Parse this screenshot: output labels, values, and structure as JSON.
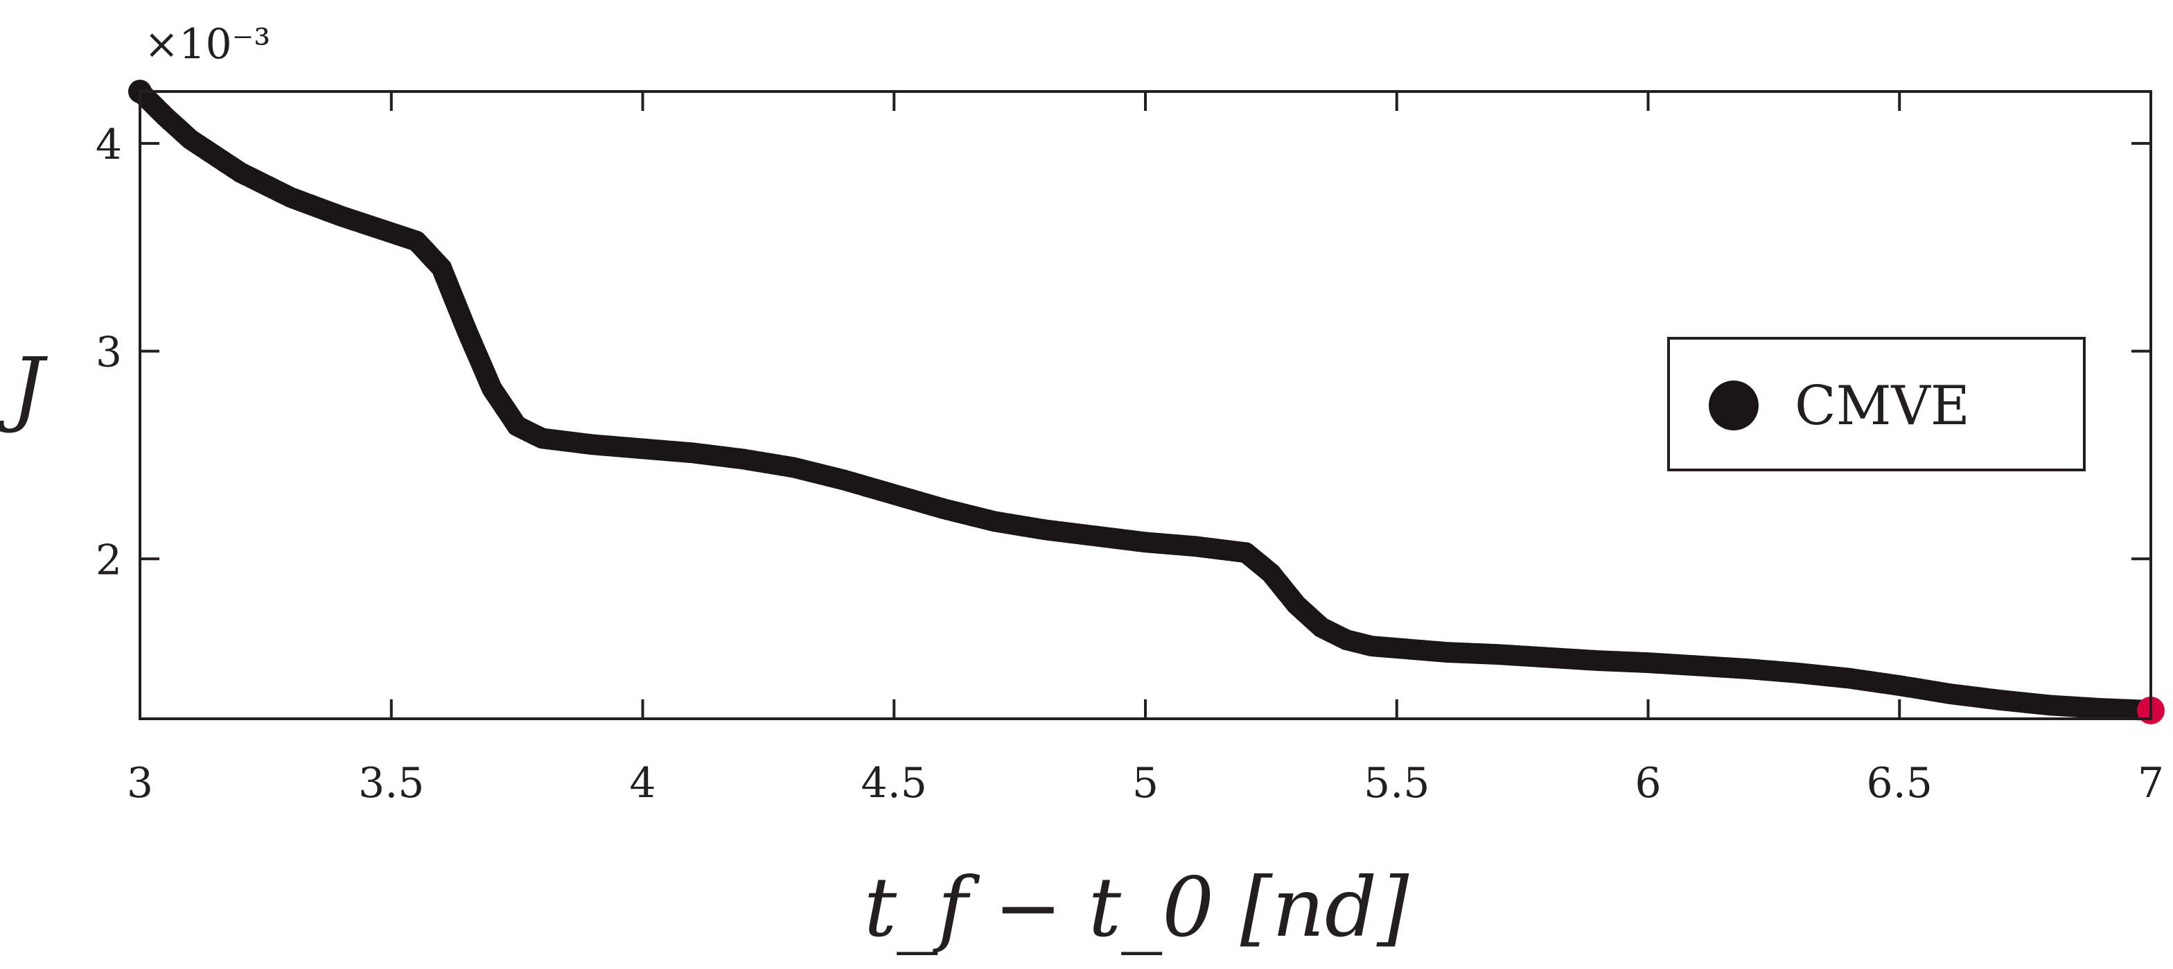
{
  "chart_data": {
    "type": "scatter",
    "xlabel": "t_f − t_0 [nd]",
    "ylabel": "J",
    "y_exponent": "×10⁻³",
    "xlim": [
      3,
      7
    ],
    "ylim": [
      1.23,
      4.25
    ],
    "xticks": [
      "3",
      "3.5",
      "4",
      "4.5",
      "5",
      "5.5",
      "6",
      "6.5",
      "7"
    ],
    "yticks": [
      "2",
      "3",
      "4"
    ],
    "grid": false,
    "legend": {
      "position": "right",
      "entries": [
        "CMVE"
      ]
    },
    "colors": {
      "series": "#1a1516",
      "highlight": "#d6003f",
      "axis": "#231f20"
    },
    "series": [
      {
        "name": "CMVE",
        "x": [
          3.0,
          3.05,
          3.1,
          3.2,
          3.3,
          3.4,
          3.5,
          3.55,
          3.6,
          3.65,
          3.7,
          3.75,
          3.8,
          3.9,
          4.0,
          4.1,
          4.2,
          4.3,
          4.4,
          4.5,
          4.6,
          4.7,
          4.8,
          4.9,
          5.0,
          5.1,
          5.2,
          5.25,
          5.3,
          5.35,
          5.4,
          5.45,
          5.5,
          5.6,
          5.7,
          5.8,
          5.9,
          6.0,
          6.1,
          6.2,
          6.3,
          6.4,
          6.5,
          6.6,
          6.7,
          6.8,
          6.9,
          7.0
        ],
        "y": [
          4.25,
          4.13,
          4.02,
          3.86,
          3.74,
          3.65,
          3.57,
          3.53,
          3.4,
          3.1,
          2.82,
          2.64,
          2.58,
          2.55,
          2.53,
          2.51,
          2.48,
          2.44,
          2.38,
          2.31,
          2.24,
          2.18,
          2.14,
          2.11,
          2.08,
          2.06,
          2.03,
          1.93,
          1.78,
          1.67,
          1.61,
          1.58,
          1.57,
          1.55,
          1.54,
          1.525,
          1.51,
          1.5,
          1.485,
          1.47,
          1.45,
          1.425,
          1.39,
          1.35,
          1.32,
          1.295,
          1.28,
          1.27
        ]
      }
    ],
    "highlight_point": {
      "x": 7.0,
      "y": 1.27
    }
  }
}
